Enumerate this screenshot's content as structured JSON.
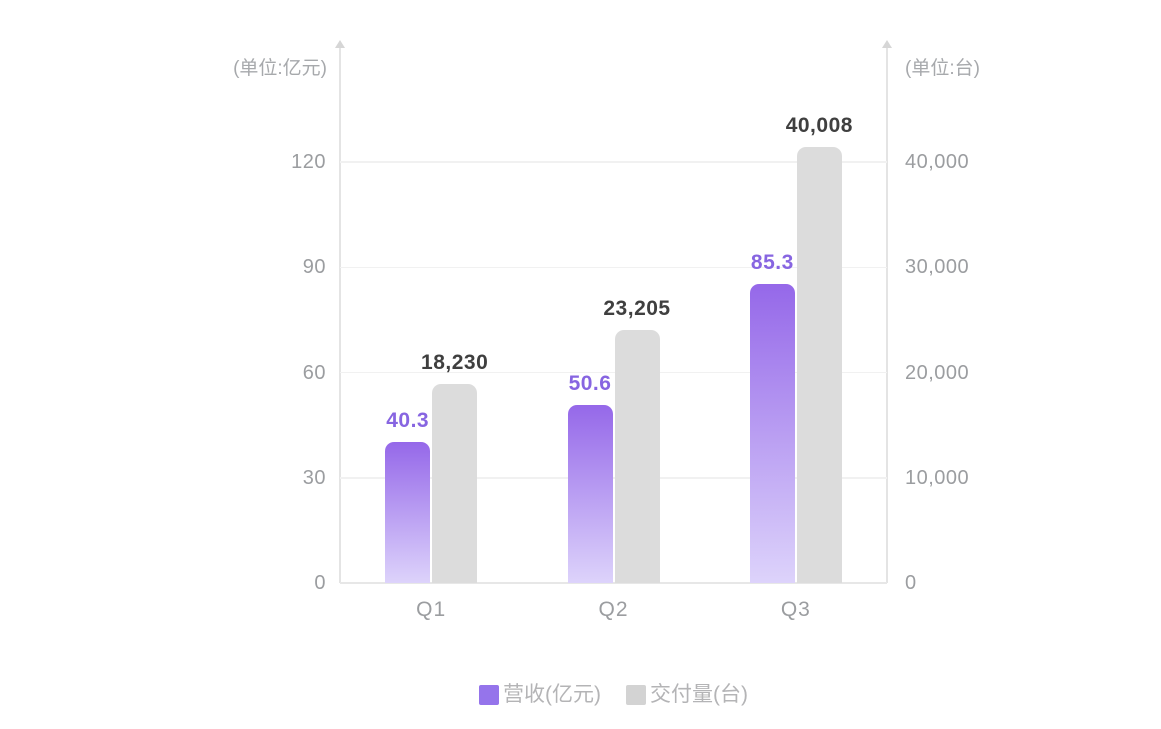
{
  "chart_data": {
    "type": "bar",
    "title": "",
    "categories": [
      "Q1",
      "Q2",
      "Q3"
    ],
    "series": [
      {
        "name": "营收(亿元)",
        "axis": "left",
        "values": [
          40.3,
          50.6,
          85.3
        ],
        "value_labels": [
          "40.3",
          "50.6",
          "85.3"
        ],
        "color_top": "#9568E9",
        "color_bottom": "#DDD3FB",
        "label_color": "#8765E1"
      },
      {
        "name": "交付量(台)",
        "axis": "right",
        "values": [
          18230,
          23205,
          40008
        ],
        "value_labels": [
          "18,230",
          "23,205",
          "40,008"
        ],
        "color": "#DCDCDC",
        "label_color": "#3F3F3F"
      }
    ],
    "left_axis": {
      "unit_label": "(单位:亿元)",
      "tick_values": [
        0,
        30,
        60,
        90,
        120
      ],
      "tick_labels": [
        "0",
        "30",
        "60",
        "90",
        "120"
      ],
      "max": 120
    },
    "right_axis": {
      "unit_label": "(单位:台)",
      "tick_values": [
        0,
        10000,
        20000,
        30000,
        40000
      ],
      "tick_labels": [
        "0",
        "10,000",
        "20,000",
        "30,000",
        "40,000"
      ],
      "max": 40000
    },
    "legend": [
      {
        "label": "营收(亿元)",
        "swatch_color": "#9574EB"
      },
      {
        "label": "交付量(台)",
        "swatch_color": "#D3D3D3"
      }
    ],
    "grid": "horizontal",
    "legend_position": "bottom",
    "background": "#ffffff"
  }
}
